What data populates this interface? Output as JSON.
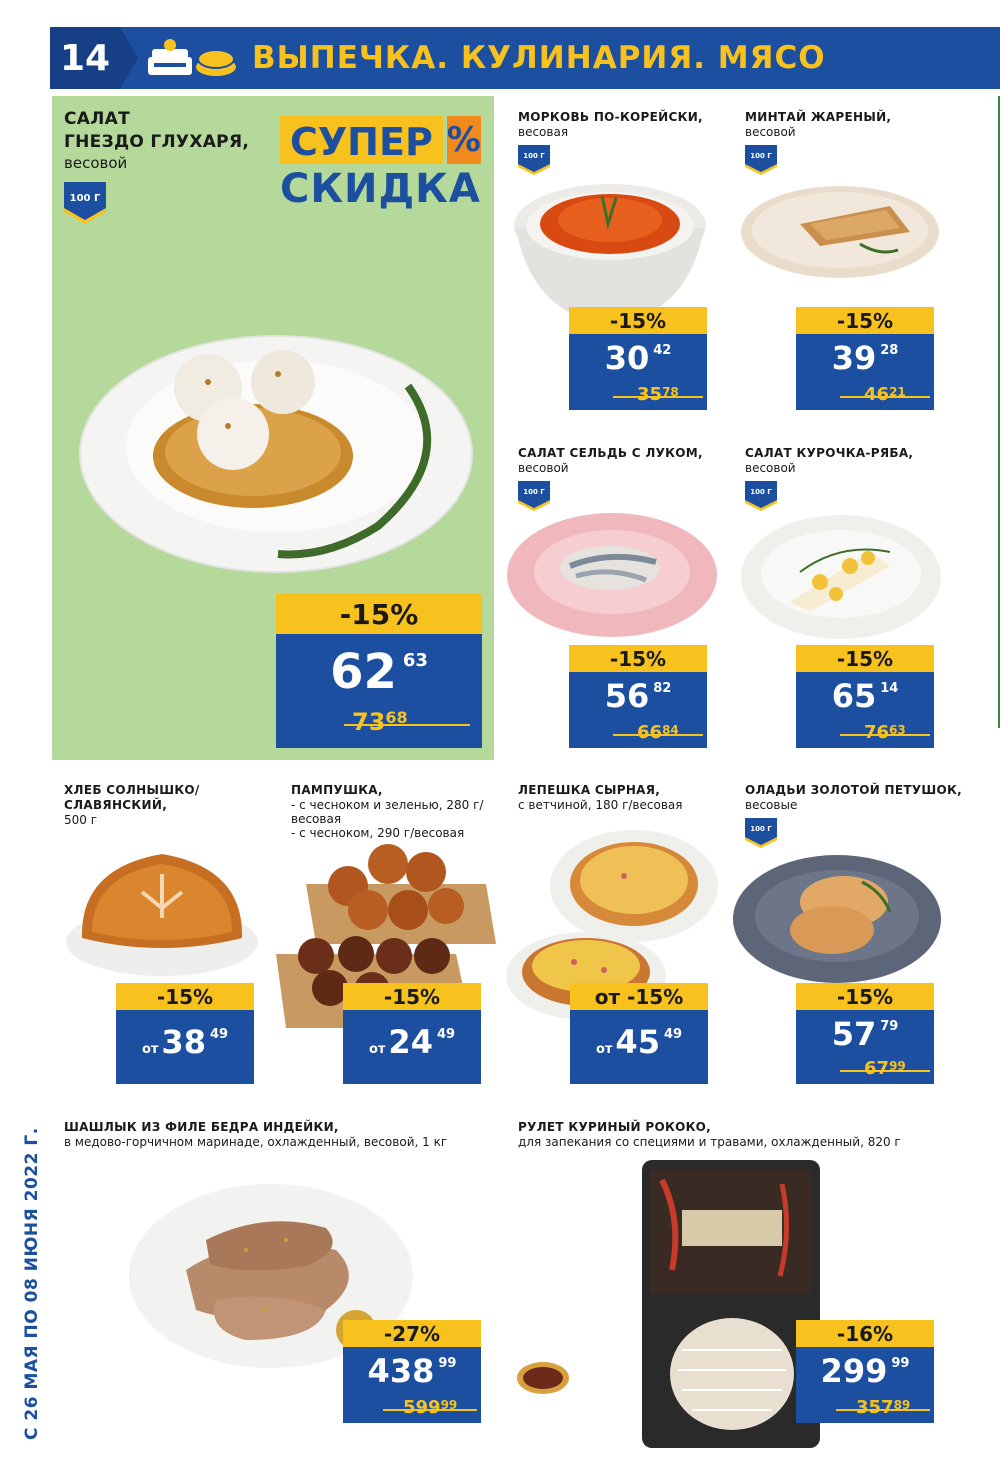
{
  "header": {
    "page_number": "14",
    "title": "ВЫПЕЧКА. КУЛИНАРИЯ. МЯСО",
    "icon": "bakery-icon"
  },
  "badge_text": "100 Г",
  "featured": {
    "title_line1": "САЛАТ",
    "title_line2": "ГНЕЗДО ГЛУХАРЯ,",
    "subtitle": "весовой",
    "promo_line1": "СУПЕР",
    "promo_pct": "%",
    "promo_line2": "СКИДКА",
    "discount": "-15%",
    "price_main": "62",
    "price_cents": "63",
    "old_main": "73",
    "old_cents": "68"
  },
  "products": [
    {
      "title": "МОРКОВЬ ПО-КОРЕЙСКИ,",
      "subtitle": "весовая",
      "discount": "-15%",
      "price_main": "30",
      "price_cents": "42",
      "old_main": "35",
      "old_cents": "78"
    },
    {
      "title": "МИНТАЙ ЖАРЕНЫЙ,",
      "subtitle": "весовой",
      "discount": "-15%",
      "price_main": "39",
      "price_cents": "28",
      "old_main": "46",
      "old_cents": "21"
    },
    {
      "title": "САЛАТ СЕЛЬДЬ С ЛУКОМ,",
      "subtitle": "весовой",
      "discount": "-15%",
      "price_main": "56",
      "price_cents": "82",
      "old_main": "66",
      "old_cents": "84"
    },
    {
      "title": "САЛАТ КУРОЧКА-РЯБА,",
      "subtitle": "весовой",
      "discount": "-15%",
      "price_main": "65",
      "price_cents": "14",
      "old_main": "76",
      "old_cents": "63"
    },
    {
      "title_line1": "ХЛЕБ СОЛНЫШКО/",
      "title_line2": "СЛАВЯНСКИЙ,",
      "subtitle": "500 г",
      "discount": "-15%",
      "from": "от",
      "price_main": "38",
      "price_cents": "49"
    },
    {
      "title": "ПАМПУШКА,",
      "sub1": "- с чесноком и зеленью, 280 г/",
      "sub2": "весовая",
      "sub3": "- с чесноком, 290 г/весовая",
      "discount": "-15%",
      "from": "от",
      "price_main": "24",
      "price_cents": "49"
    },
    {
      "title": "ЛЕПЕШКА СЫРНАЯ,",
      "subtitle": "с ветчиной, 180 г/весовая",
      "discount": "от -15%",
      "from": "от",
      "price_main": "45",
      "price_cents": "49"
    },
    {
      "title": "ОЛАДЬИ ЗОЛОТОЙ ПЕТУШОК,",
      "subtitle": "весовые",
      "discount": "-15%",
      "price_main": "57",
      "price_cents": "79",
      "old_main": "67",
      "old_cents": "99"
    },
    {
      "title": "ШАШЛЫК ИЗ ФИЛЕ БЕДРА ИНДЕЙКИ,",
      "subtitle": "в медово-горчичном маринаде, охлажденный, весовой, 1 кг",
      "discount": "-27%",
      "price_main": "438",
      "price_cents": "99",
      "old_main": "599",
      "old_cents": "99"
    },
    {
      "title": "РУЛЕТ КУРИНЫЙ РОКОКО,",
      "subtitle": "для запекания со специями и травами, охлажденный, 820 г",
      "discount": "-16%",
      "price_main": "299",
      "price_cents": "99",
      "old_main": "357",
      "old_cents": "89"
    }
  ],
  "side_text": "С 26 МАЯ ПО 08 ИЮНЯ 2022 Г.",
  "colors": {
    "blue": "#1c4fa0",
    "yellow": "#f7c21e",
    "green_bg": "#b4d99a",
    "orange": "#f08a1c"
  }
}
